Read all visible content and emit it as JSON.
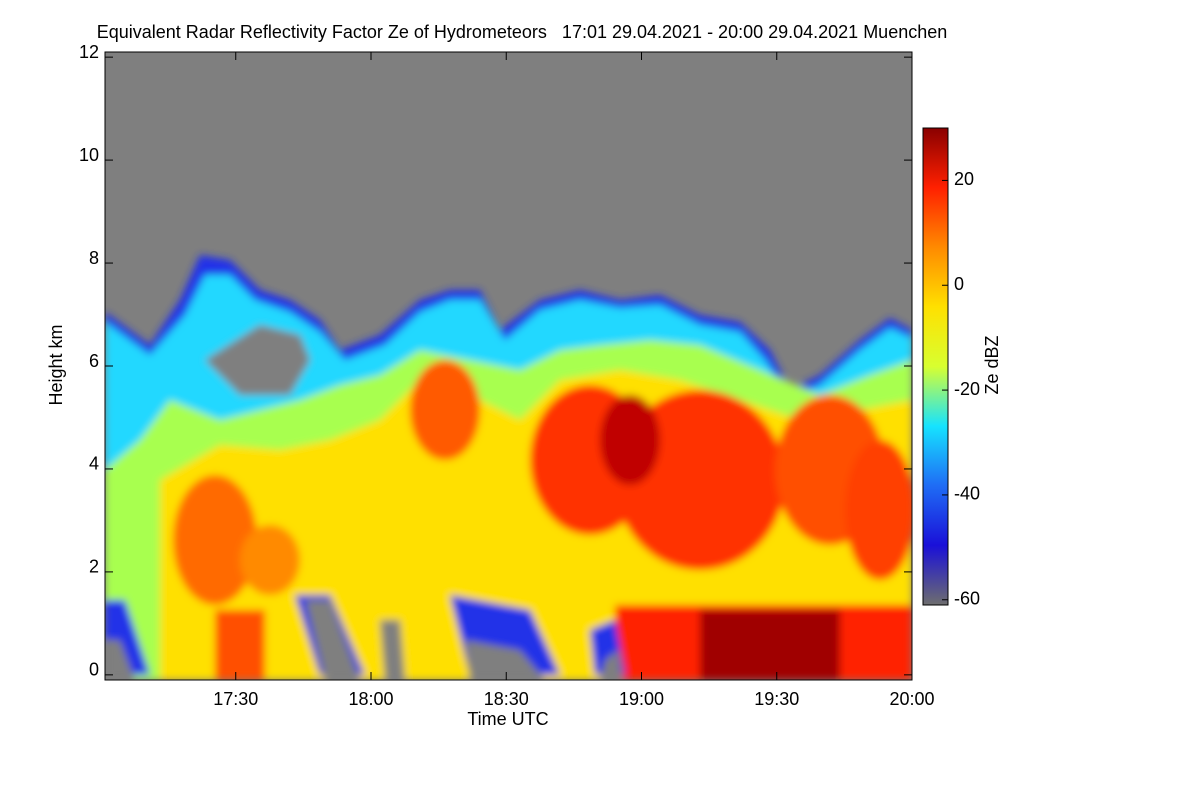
{
  "chart_data": {
    "type": "heatmap",
    "title": "Equivalent Radar Reflectivity Factor Ze of Hydrometeors   17:01 29.04.2021 - 20:00 29.04.2021 Muenchen",
    "x_label": "Time UTC",
    "y_label": "Height km",
    "colorbar_label": "Ze dBZ",
    "xlim": [
      1021,
      1200
    ],
    "xticks": [
      {
        "value": 1050,
        "label": "17:30"
      },
      {
        "value": 1080,
        "label": "18:00"
      },
      {
        "value": 1110,
        "label": "18:30"
      },
      {
        "value": 1140,
        "label": "19:00"
      },
      {
        "value": 1170,
        "label": "19:30"
      },
      {
        "value": 1200,
        "label": "20:00"
      }
    ],
    "ylim": [
      -0.1,
      12.1
    ],
    "yticks": [
      0,
      2,
      4,
      6,
      8,
      10,
      12
    ],
    "clim": [
      -61,
      30
    ],
    "cticks": [
      -60,
      -40,
      -20,
      0,
      20
    ],
    "colormap": [
      "#6e6e6e",
      "#1a10d8",
      "#1f6cf5",
      "#16e3ff",
      "#d8ff30",
      "#ffe000",
      "#ff8a00",
      "#ff2000",
      "#8a0000"
    ]
  }
}
